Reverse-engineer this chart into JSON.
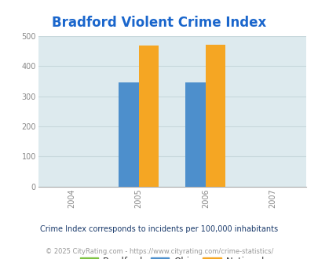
{
  "title": "Bradford Violent Crime Index",
  "title_color": "#1a66cc",
  "years": [
    2004,
    2005,
    2006,
    2007
  ],
  "bar_years": [
    2005,
    2006
  ],
  "bradford_values": [
    0,
    0
  ],
  "ohio_values": [
    347,
    347
  ],
  "national_values": [
    469,
    473
  ],
  "bradford_color": "#7dc242",
  "ohio_color": "#4d8fcc",
  "national_color": "#f5a623",
  "ylim": [
    0,
    500
  ],
  "yticks": [
    0,
    100,
    200,
    300,
    400,
    500
  ],
  "plot_bg_color": "#ddeaee",
  "fig_bg_color": "#ffffff",
  "grid_color": "#c8d8dc",
  "bar_width": 0.3,
  "note_text": "Crime Index corresponds to incidents per 100,000 inhabitants",
  "note_color": "#1a3a6b",
  "copyright_text": "© 2025 CityRating.com - https://www.cityrating.com/crime-statistics/",
  "copyright_color": "#999999",
  "tick_color": "#888888",
  "title_fontsize": 12
}
